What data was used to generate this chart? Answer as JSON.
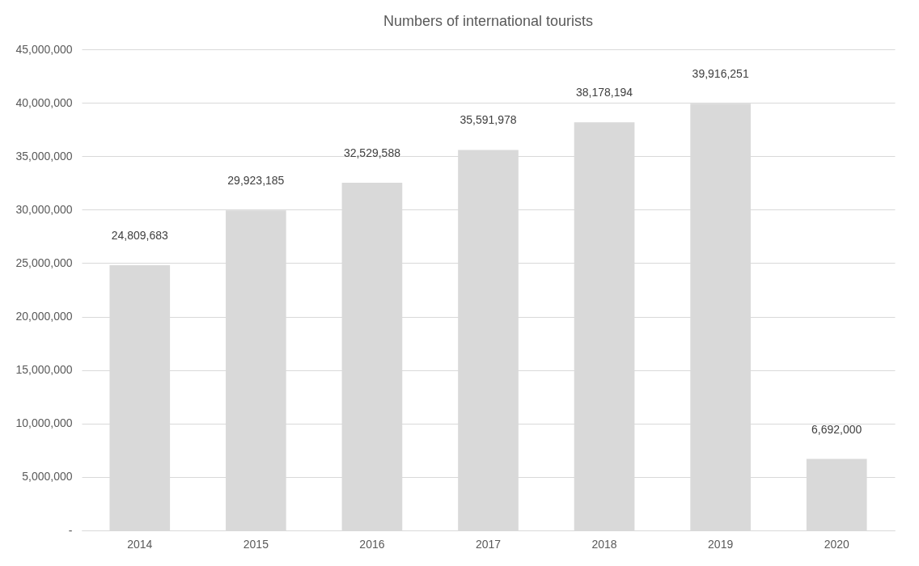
{
  "chart_data": {
    "type": "bar",
    "title": "Numbers of international tourists",
    "categories": [
      "2014",
      "2015",
      "2016",
      "2017",
      "2018",
      "2019",
      "2020"
    ],
    "values": [
      24809683,
      29923185,
      32529588,
      35591978,
      38178194,
      39916251,
      6692000
    ],
    "value_labels": [
      "24,809,683",
      "29,923,185",
      "32,529,588",
      "35,591,978",
      "38,178,194",
      "39,916,251",
      "6,692,000"
    ],
    "color": "#d9d9d9",
    "ylim": [
      0,
      45000000
    ],
    "yticks": [
      {
        "value": 0,
        "label": "-"
      },
      {
        "value": 5000000,
        "label": "5,000,000"
      },
      {
        "value": 10000000,
        "label": "10,000,000"
      },
      {
        "value": 15000000,
        "label": "15,000,000"
      },
      {
        "value": 20000000,
        "label": "20,000,000"
      },
      {
        "value": 25000000,
        "label": "25,000,000"
      },
      {
        "value": 30000000,
        "label": "30,000,000"
      },
      {
        "value": 35000000,
        "label": "35,000,000"
      },
      {
        "value": 40000000,
        "label": "40,000,000"
      },
      {
        "value": 45000000,
        "label": "45,000,000"
      }
    ],
    "grid": "y"
  }
}
